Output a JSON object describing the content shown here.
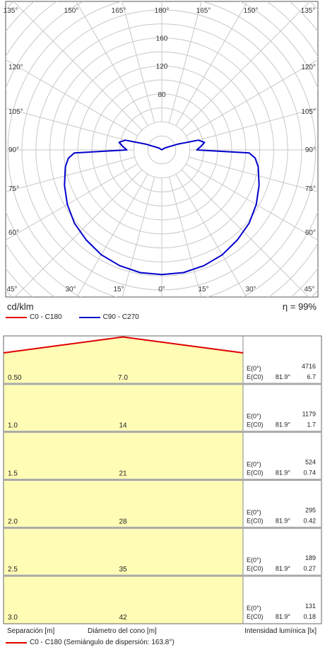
{
  "chart_data": [
    {
      "type": "polar",
      "unit_label": "cd/klm",
      "efficiency_label": "η = 99%",
      "angle_labels": [
        "0°",
        "15°",
        "30°",
        "45°",
        "60°",
        "75°",
        "90°",
        "105°",
        "120°",
        "135°",
        "150°",
        "165°",
        "180°"
      ],
      "radial_ticks": [
        80,
        120,
        160
      ],
      "r_max": 200,
      "grid": true,
      "legend": {
        "placement": "bottom-left",
        "entries": [
          {
            "name": "C0 - C180",
            "color": "#e00000"
          },
          {
            "name": "C90 - C270",
            "color": "#0000cc"
          }
        ]
      },
      "series": [
        {
          "name": "C90 - C270",
          "color": "#0000cc",
          "angles": [
            0,
            10,
            20,
            30,
            40,
            50,
            60,
            70,
            80,
            85,
            88,
            90,
            95,
            100,
            105,
            110,
            115,
            120,
            125,
            130
          ],
          "values": [
            178,
            178,
            176,
            173,
            168,
            163,
            156,
            148,
            140,
            134,
            125,
            50,
            56,
            62,
            54,
            24,
            10,
            6,
            3,
            0
          ]
        }
      ]
    },
    {
      "type": "cone",
      "rows": [
        {
          "separation": "0.50",
          "diameter": "7.0",
          "e0_label": "E(0°)",
          "e0": "4716",
          "ec0_label": "E(C0)",
          "angle": "81.9°",
          "ec0": "6.7"
        },
        {
          "separation": "1.0",
          "diameter": "14",
          "e0_label": "E(0°)",
          "e0": "1179",
          "ec0_label": "E(C0)",
          "angle": "81.9°",
          "ec0": "1.7"
        },
        {
          "separation": "1.5",
          "diameter": "21",
          "e0_label": "E(0°)",
          "e0": "524",
          "ec0_label": "E(C0)",
          "angle": "81.9°",
          "ec0": "0.74"
        },
        {
          "separation": "2.0",
          "diameter": "28",
          "e0_label": "E(0°)",
          "e0": "295",
          "ec0_label": "E(C0)",
          "angle": "81.9°",
          "ec0": "0.42"
        },
        {
          "separation": "2.5",
          "diameter": "35",
          "e0_label": "E(0°)",
          "e0": "189",
          "ec0_label": "E(C0)",
          "angle": "81.9°",
          "ec0": "0.27"
        },
        {
          "separation": "3.0",
          "diameter": "42",
          "e0_label": "E(0°)",
          "e0": "131",
          "ec0_label": "E(C0)",
          "angle": "81.9°",
          "ec0": "0.18"
        }
      ],
      "xlabel_left": "Separación [m]",
      "xlabel_center": "Diámetro del cono [m]",
      "xlabel_right": "Intensidad lumínica [lx]",
      "legend_entry": "C0 - C180 (Semiángulo de dispersión: 163.8°)",
      "colors": {
        "fill": "#fffcb6",
        "line": "#e00000",
        "grid": "#aaaaaa"
      }
    }
  ]
}
